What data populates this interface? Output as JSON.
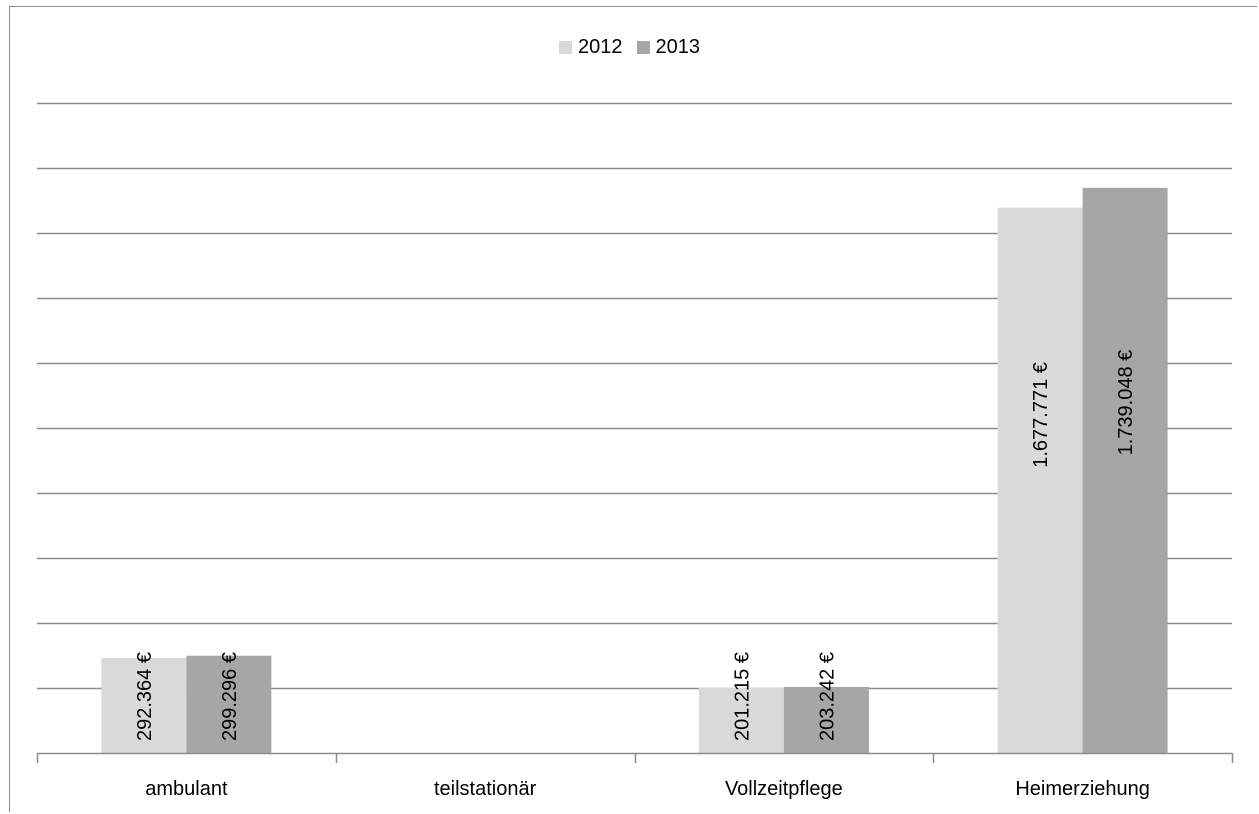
{
  "chart_data": {
    "type": "bar",
    "title": "",
    "xlabel": "",
    "ylabel": "",
    "categories": [
      "ambulant",
      "teilstationär",
      "Vollzeitpflege",
      "Heimerziehung"
    ],
    "series": [
      {
        "name": "2012",
        "color": "#d9d9d9",
        "values": [
          292364,
          null,
          201215,
          1677771
        ],
        "labels": [
          "292.364 €",
          "",
          "201.215 €",
          "1.677.771 €"
        ]
      },
      {
        "name": "2013",
        "color": "#a6a6a6",
        "values": [
          299296,
          null,
          203242,
          1739048
        ],
        "labels": [
          "299.296 €",
          "",
          "203.242 €",
          "1.739.048 €"
        ]
      }
    ],
    "ylim": [
      0,
      2000000
    ],
    "ytick_step": 200000,
    "grid": true,
    "legend_position": "top-center"
  }
}
